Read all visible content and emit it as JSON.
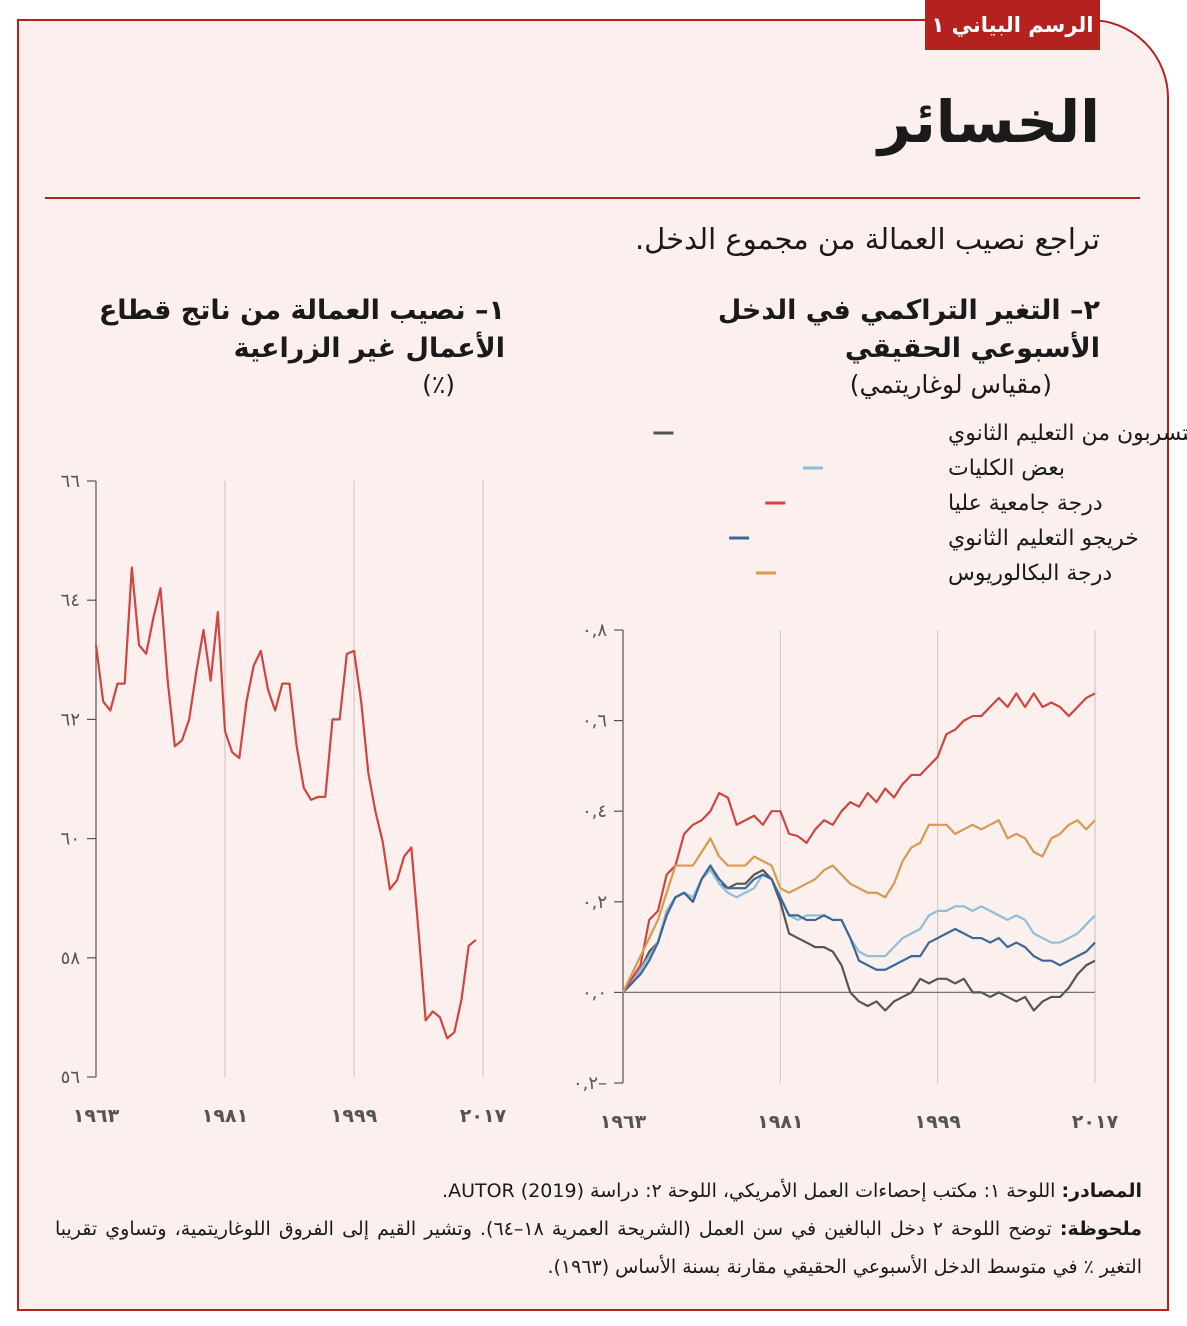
{
  "header": {
    "tag": "الرسم البياني ١",
    "title": "الخسائر",
    "subtitle": "تراجع نصيب العمالة من مجموع الدخل."
  },
  "chart_data": [
    {
      "type": "line",
      "title": "١– نصيب العمالة من ناتج قطاع الأعمال غير الزراعية",
      "subtitle": "(٪)",
      "x": [
        1963,
        1964,
        1965,
        1966,
        1967,
        1968,
        1969,
        1970,
        1971,
        1972,
        1973,
        1974,
        1975,
        1976,
        1977,
        1978,
        1979,
        1980,
        1981,
        1982,
        1983,
        1984,
        1985,
        1986,
        1987,
        1988,
        1989,
        1990,
        1991,
        1992,
        1993,
        1994,
        1995,
        1996,
        1997,
        1998,
        1999,
        2000,
        2001,
        2002,
        2003,
        2004,
        2005,
        2006,
        2007,
        2008,
        2009,
        2010,
        2011,
        2012,
        2013,
        2014,
        2015,
        2016
      ],
      "values": [
        63.25,
        62.3,
        62.15,
        62.6,
        62.6,
        64.55,
        63.25,
        63.1,
        63.7,
        64.2,
        62.65,
        61.55,
        61.65,
        62.0,
        62.8,
        63.5,
        62.65,
        63.8,
        61.8,
        61.45,
        61.35,
        62.3,
        62.9,
        63.15,
        62.5,
        62.15,
        62.6,
        62.6,
        61.55,
        60.85,
        60.65,
        60.7,
        60.7,
        62.0,
        62.0,
        63.1,
        63.15,
        62.3,
        61.1,
        60.45,
        59.95,
        59.15,
        59.3,
        59.7,
        59.85,
        58.45,
        56.95,
        57.1,
        57.0,
        56.65,
        56.75,
        57.3,
        58.2,
        58.3
      ],
      "color": "#d0453f",
      "xlim": [
        1963,
        2017
      ],
      "xticks": [
        {
          "value": 1963,
          "label": "١٩٦٣"
        },
        {
          "value": 1981,
          "label": "١٩٨١"
        },
        {
          "value": 1999,
          "label": "١٩٩٩"
        },
        {
          "value": 2017,
          "label": "٢٠١٧"
        }
      ],
      "ylim": [
        56,
        66
      ],
      "yticks": [
        {
          "value": 56,
          "label": "٥٦"
        },
        {
          "value": 58,
          "label": "٥٨"
        },
        {
          "value": 60,
          "label": "٦٠"
        },
        {
          "value": 62,
          "label": "٦٢"
        },
        {
          "value": 64,
          "label": "٦٤"
        },
        {
          "value": 66,
          "label": "٦٦"
        }
      ],
      "grid": "x"
    },
    {
      "type": "line",
      "title": "٢– التغير التراكمي في الدخل الأسبوعي الحقيقي",
      "subtitle": "(مقياس لوغاريتمي)",
      "x": [
        1963,
        1964,
        1965,
        1966,
        1967,
        1968,
        1969,
        1970,
        1971,
        1972,
        1973,
        1974,
        1975,
        1976,
        1977,
        1978,
        1979,
        1980,
        1981,
        1982,
        1983,
        1984,
        1985,
        1986,
        1987,
        1988,
        1989,
        1990,
        1991,
        1992,
        1993,
        1994,
        1995,
        1996,
        1997,
        1998,
        1999,
        2000,
        2001,
        2002,
        2003,
        2004,
        2005,
        2006,
        2007,
        2008,
        2009,
        2010,
        2011,
        2012,
        2013,
        2014,
        2015,
        2016,
        2017
      ],
      "series": [
        {
          "name": "المتسربون من التعليم الثانوي",
          "color": "#555555",
          "values": [
            0,
            0.02,
            0.05,
            0.09,
            0.11,
            0.18,
            0.21,
            0.22,
            0.2,
            0.25,
            0.28,
            0.24,
            0.23,
            0.24,
            0.24,
            0.26,
            0.27,
            0.25,
            0.2,
            0.13,
            0.12,
            0.11,
            0.1,
            0.1,
            0.09,
            0.06,
            0.0,
            -0.02,
            -0.03,
            -0.02,
            -0.04,
            -0.02,
            -0.01,
            0.0,
            0.03,
            0.02,
            0.03,
            0.03,
            0.02,
            0.03,
            0.0,
            0.0,
            -0.01,
            0.0,
            -0.01,
            -0.02,
            -0.01,
            -0.04,
            -0.02,
            -0.01,
            -0.01,
            0.01,
            0.04,
            0.06,
            0.07
          ]
        },
        {
          "name": "بعض الكليات",
          "color": "#8fbfd6",
          "values": [
            0,
            0.02,
            0.05,
            0.08,
            0.11,
            0.18,
            0.21,
            0.22,
            0.21,
            0.25,
            0.27,
            0.24,
            0.22,
            0.21,
            0.22,
            0.23,
            0.26,
            0.25,
            0.21,
            0.17,
            0.16,
            0.17,
            0.17,
            0.17,
            0.16,
            0.16,
            0.12,
            0.09,
            0.08,
            0.08,
            0.08,
            0.1,
            0.12,
            0.13,
            0.14,
            0.17,
            0.18,
            0.18,
            0.19,
            0.19,
            0.18,
            0.19,
            0.18,
            0.17,
            0.16,
            0.17,
            0.16,
            0.13,
            0.12,
            0.11,
            0.11,
            0.12,
            0.13,
            0.15,
            0.17
          ]
        },
        {
          "name": "درجة جامعية عليا",
          "color": "#d0453f",
          "values": [
            0,
            0.03,
            0.06,
            0.16,
            0.18,
            0.26,
            0.28,
            0.35,
            0.37,
            0.38,
            0.4,
            0.44,
            0.43,
            0.37,
            0.38,
            0.39,
            0.37,
            0.4,
            0.4,
            0.35,
            0.345,
            0.33,
            0.36,
            0.38,
            0.37,
            0.4,
            0.42,
            0.41,
            0.44,
            0.42,
            0.45,
            0.43,
            0.46,
            0.48,
            0.48,
            0.5,
            0.52,
            0.57,
            0.58,
            0.6,
            0.61,
            0.61,
            0.63,
            0.65,
            0.63,
            0.66,
            0.63,
            0.66,
            0.63,
            0.64,
            0.63,
            0.61,
            0.63,
            0.65,
            0.66
          ]
        },
        {
          "name": "خريجو التعليم الثانوي",
          "color": "#3c6796",
          "values": [
            0,
            0.02,
            0.04,
            0.07,
            0.11,
            0.17,
            0.21,
            0.22,
            0.2,
            0.25,
            0.28,
            0.25,
            0.23,
            0.23,
            0.23,
            0.25,
            0.26,
            0.25,
            0.21,
            0.17,
            0.17,
            0.16,
            0.16,
            0.17,
            0.16,
            0.16,
            0.12,
            0.07,
            0.06,
            0.05,
            0.05,
            0.06,
            0.07,
            0.08,
            0.08,
            0.11,
            0.12,
            0.13,
            0.14,
            0.13,
            0.12,
            0.12,
            0.11,
            0.12,
            0.1,
            0.11,
            0.1,
            0.08,
            0.07,
            0.07,
            0.06,
            0.07,
            0.08,
            0.09,
            0.11
          ]
        },
        {
          "name": "درجة البكالوريوس",
          "color": "#d89a4e",
          "values": [
            0,
            0.04,
            0.08,
            0.12,
            0.16,
            0.22,
            0.28,
            0.28,
            0.28,
            0.31,
            0.34,
            0.3,
            0.28,
            0.28,
            0.28,
            0.3,
            0.29,
            0.28,
            0.23,
            0.22,
            0.23,
            0.24,
            0.25,
            0.27,
            0.28,
            0.26,
            0.24,
            0.23,
            0.22,
            0.22,
            0.21,
            0.24,
            0.29,
            0.32,
            0.33,
            0.37,
            0.37,
            0.37,
            0.35,
            0.36,
            0.37,
            0.36,
            0.37,
            0.38,
            0.34,
            0.35,
            0.34,
            0.31,
            0.3,
            0.34,
            0.35,
            0.37,
            0.38,
            0.36,
            0.38
          ]
        }
      ],
      "xlim": [
        1963,
        2017
      ],
      "xticks": [
        {
          "value": 1963,
          "label": "١٩٦٣"
        },
        {
          "value": 1981,
          "label": "١٩٨١"
        },
        {
          "value": 1999,
          "label": "١٩٩٩"
        },
        {
          "value": 2017,
          "label": "٢٠١٧"
        }
      ],
      "ylim": [
        -0.2,
        0.8
      ],
      "yticks": [
        {
          "value": -0.2,
          "label": "٠,٢–"
        },
        {
          "value": 0,
          "label": "٠,٠"
        },
        {
          "value": 0.2,
          "label": "٠,٢"
        },
        {
          "value": 0.4,
          "label": "٠,٤"
        },
        {
          "value": 0.6,
          "label": "٠,٦"
        },
        {
          "value": 0.8,
          "label": "٠,٨"
        }
      ],
      "grid": "x",
      "legend": "top"
    }
  ],
  "notes": {
    "sources_label": "المصادر:",
    "sources": "اللوحة ١: مكتب إحصاءات العمل الأمريكي، اللوحة ٢: دراسة AUTOR (2019).",
    "note_label": "ملحوظة:",
    "note": "توضح اللوحة ٢ دخل البالغين في سن العمل (الشريحة العمرية ١٨–٦٤). وتشير القيم إلى الفروق اللوغاريتمية، وتساوي تقريبا التغير ٪ في متوسط الدخل الأسبوعي الحقيقي مقارنة بسنة الأساس (١٩٦٣)."
  }
}
